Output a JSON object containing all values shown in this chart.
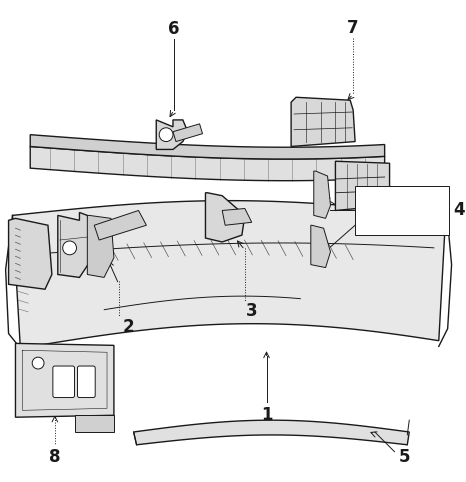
{
  "background": "#ffffff",
  "line_color": "#1a1a1a",
  "fig_w": 4.66,
  "fig_h": 4.82,
  "dpi": 100
}
